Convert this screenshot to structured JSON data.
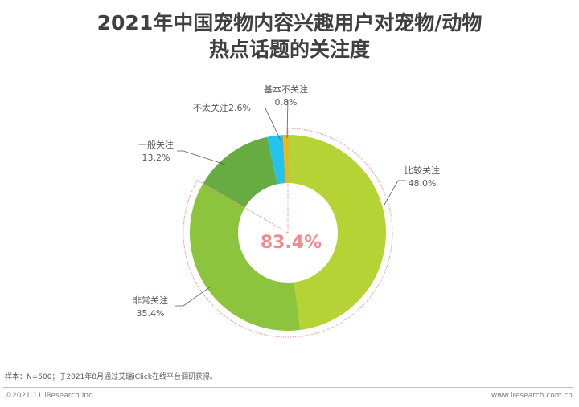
{
  "title_line1": "2021年中国宠物内容兴趣用户对宠物/动物",
  "title_line2": "热点话题的关注度",
  "center_label": "83.4%",
  "labels": {
    "bijiao_name": "比较关注",
    "bijiao_value": "48.0%",
    "feichang_name": "非常关注",
    "feichang_value": "35.4%",
    "yiban_name": "一般关注",
    "yiban_value": "13.2%",
    "butai": "不太关注2.6%",
    "jiben_name": "基本不关注",
    "jiben_value": "0.8%"
  },
  "footer": {
    "note": "样本：N=500；于2021年8月通过艾瑞iClick在线平台调研获得。",
    "copyright": "©2021.11 iResearch Inc.",
    "website": "www.iresearch.com.cn"
  },
  "colors": {
    "bijiao": "#b5d334",
    "feichang": "#8cc43e",
    "yiban": "#66ac42",
    "butai": "#26c2ee",
    "jiben": "#f5b800",
    "highlight": "#f08c8c"
  },
  "chart_data": {
    "type": "pie",
    "subtype": "donut",
    "title": "2021年中国宠物内容兴趣用户对宠物/动物热点话题的关注度",
    "categories": [
      "比较关注",
      "非常关注",
      "一般关注",
      "不太关注",
      "基本不关注"
    ],
    "values": [
      48.0,
      35.4,
      13.2,
      2.6,
      0.8
    ],
    "unit": "%",
    "annotation": {
      "text": "83.4%",
      "meaning": "比较关注 + 非常关注",
      "position": "center"
    },
    "legend": "none (direct labels)",
    "note": "样本：N=500；于2021年8月通过艾瑞iClick在线平台调研获得。"
  }
}
